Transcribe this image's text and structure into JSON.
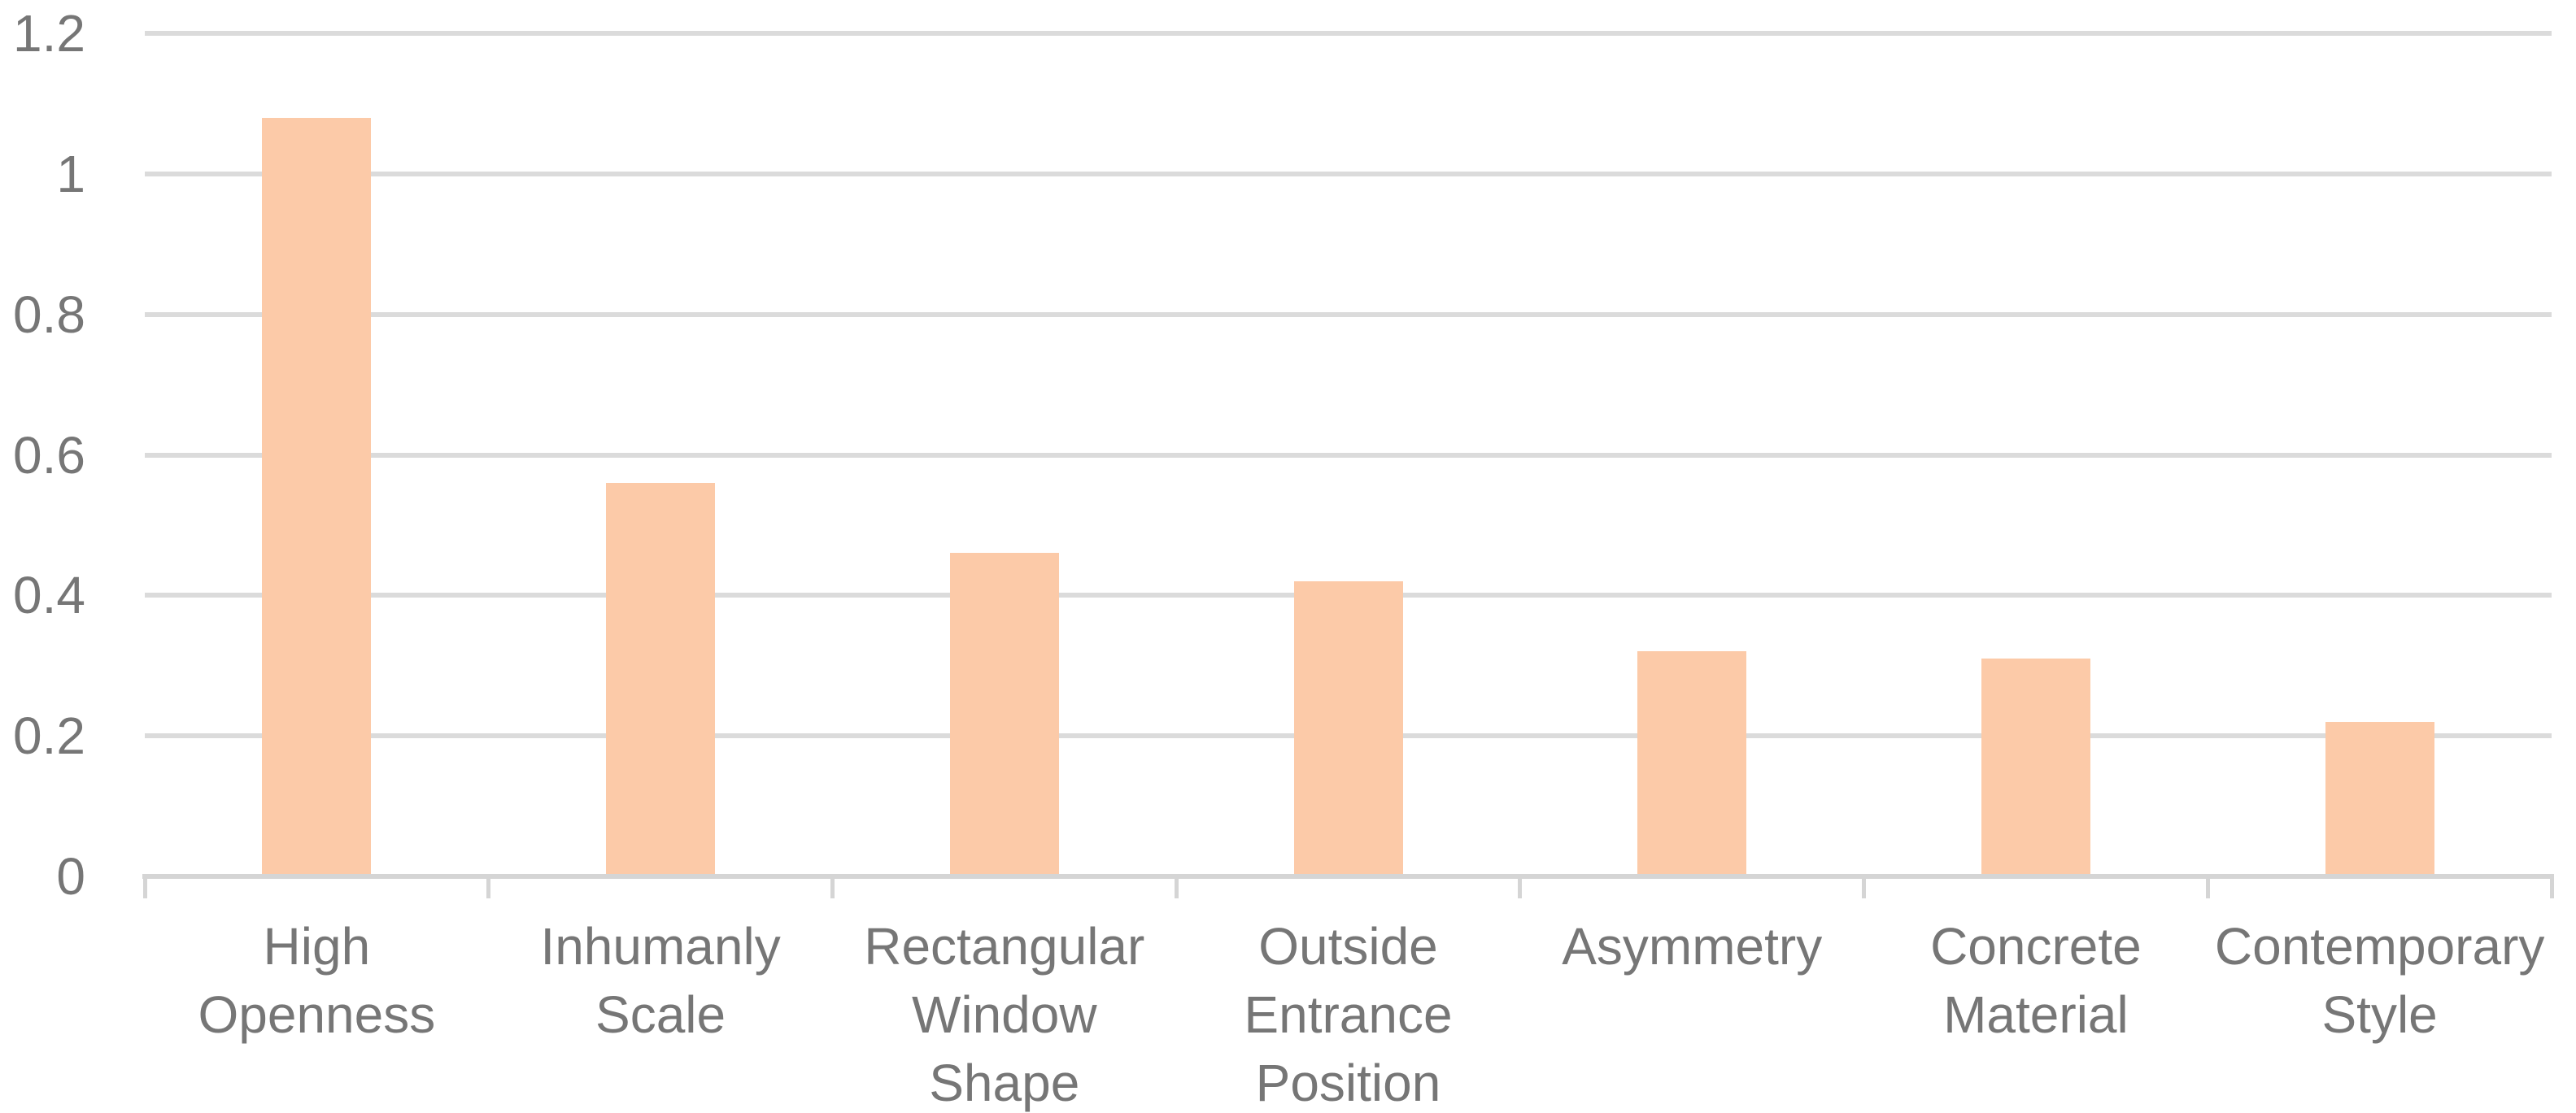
{
  "chart_data": {
    "type": "bar",
    "title": "",
    "xlabel": "",
    "ylabel": "",
    "categories": [
      "High Openness",
      "Inhumanly Scale",
      "Rectangular Window Shape",
      "Outside Entrance Position",
      "Asymmetry",
      "Concrete Material",
      "Contemporary Style"
    ],
    "category_display_lines": [
      [
        "High",
        "Openness"
      ],
      [
        "Inhumanly",
        "Scale"
      ],
      [
        "Rectangular",
        "Window Shape"
      ],
      [
        "Outside",
        "Entrance",
        "Position"
      ],
      [
        "Asymmetry"
      ],
      [
        "Concrete",
        "Material"
      ],
      [
        "Contemporary",
        "Style"
      ]
    ],
    "values": [
      1.08,
      0.56,
      0.46,
      0.42,
      0.32,
      0.31,
      0.22
    ],
    "ylim": [
      0,
      1.2
    ],
    "ytick_step": 0.2,
    "ytick_labels": [
      "0",
      "0.2",
      "0.4",
      "0.6",
      "0.8",
      "1",
      "1.2"
    ],
    "grid": true,
    "legend": false,
    "colors": {
      "bar_fill": "#FCCAA8",
      "gridline": "#DBDBDB",
      "axis_line": "#D5D5D5",
      "tick_mark": "#D5D5D5",
      "text": "#767676",
      "background": "#FFFFFF"
    }
  }
}
